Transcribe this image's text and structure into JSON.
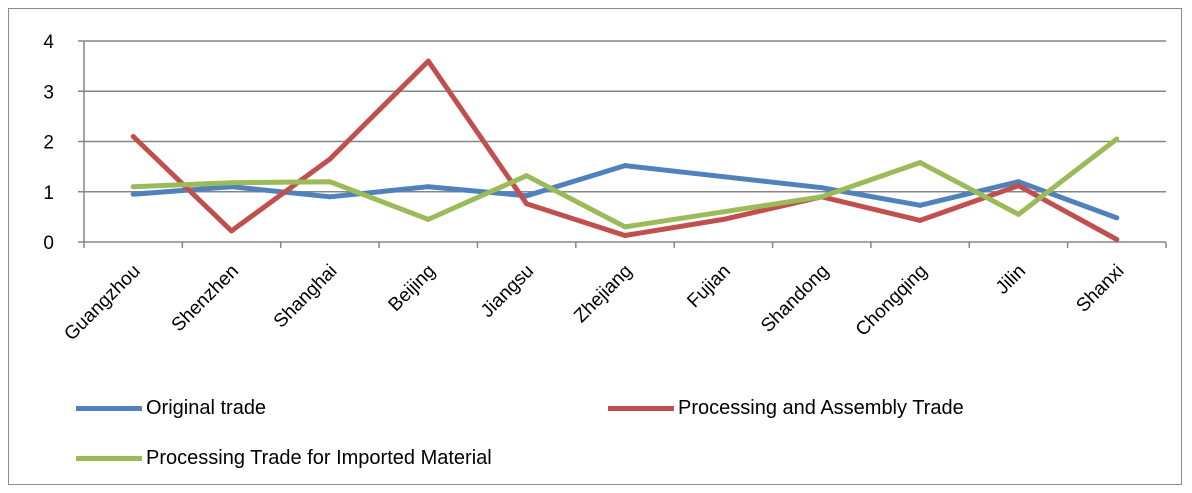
{
  "chart_data": {
    "type": "line",
    "categories": [
      "Guangzhou",
      "Shenzhen",
      "Shanghai",
      "Beijing",
      "Jiangsu",
      "Zhejiang",
      "Fujian",
      "Shandong",
      "Chongqing",
      "Jilin",
      "Shanxi"
    ],
    "ylim": [
      0,
      4
    ],
    "yticks": [
      0,
      1,
      2,
      3,
      4
    ],
    "grid": true,
    "legend_position": "bottom",
    "series": [
      {
        "name": "Original trade",
        "color": "#4f81bd",
        "values": [
          0.95,
          1.1,
          0.9,
          1.1,
          0.92,
          1.52,
          1.3,
          1.08,
          0.73,
          1.2,
          0.48
        ]
      },
      {
        "name": "Processing and Assembly Trade",
        "color": "#c0504d",
        "values": [
          2.1,
          0.22,
          1.65,
          3.6,
          0.76,
          0.13,
          0.45,
          0.9,
          0.43,
          1.12,
          0.05
        ]
      },
      {
        "name": "Processing Trade for Imported Material",
        "color": "#9bbb59",
        "values": [
          1.1,
          1.18,
          1.2,
          0.45,
          1.32,
          0.3,
          0.6,
          0.9,
          1.58,
          0.55,
          2.05
        ]
      }
    ]
  }
}
